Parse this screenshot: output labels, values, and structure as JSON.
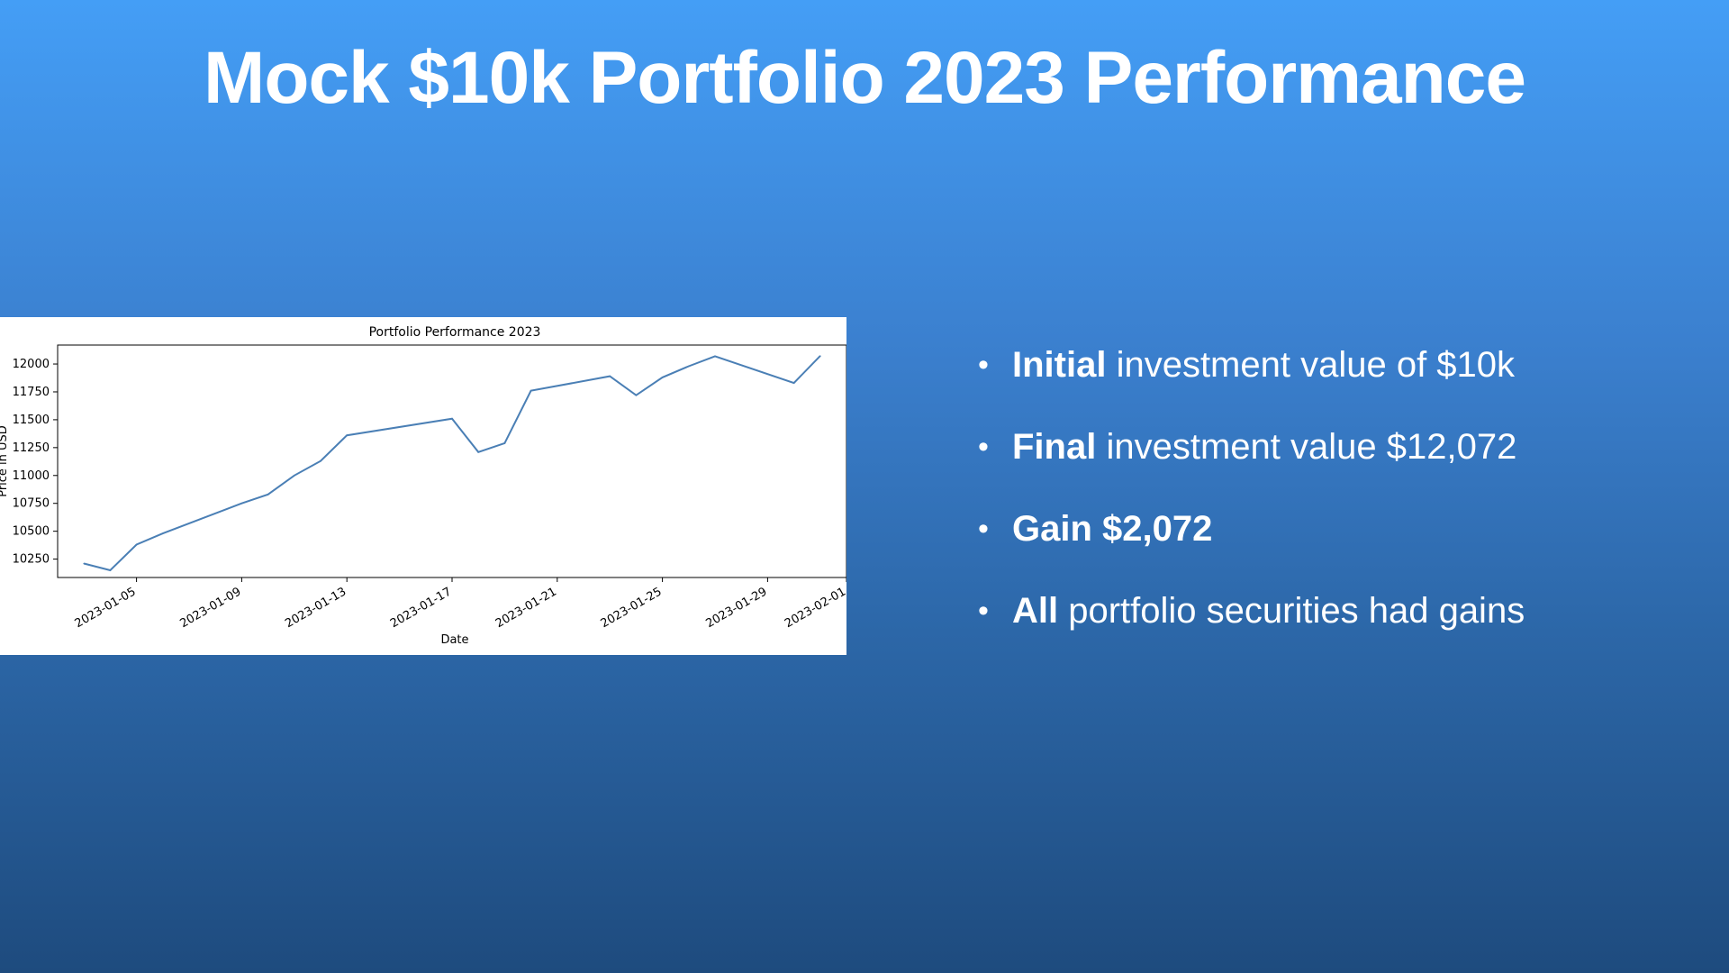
{
  "slide": {
    "title": "Mock $10k Portfolio 2023 Performance"
  },
  "bullets": [
    {
      "bold": "Initial",
      "text": " investment value of $10k"
    },
    {
      "bold": "Final",
      "text": " investment value $12,072"
    },
    {
      "bold": "Gain $2,072",
      "text": ""
    },
    {
      "bold": "All",
      "text": " portfolio securities had gains"
    }
  ],
  "colors": {
    "line": "#4a7fb5",
    "arrow": "#58aa35",
    "background_top": "#449ef6",
    "background_bottom": "#1e4b7e"
  },
  "icons": {
    "trend": "up-right-arrow-icon"
  },
  "chart_data": {
    "type": "line",
    "title": "Portfolio Performance 2023",
    "xlabel": "Date",
    "ylabel": "Price in USD",
    "x": [
      "2023-01-03",
      "2023-01-04",
      "2023-01-05",
      "2023-01-06",
      "2023-01-09",
      "2023-01-10",
      "2023-01-11",
      "2023-01-12",
      "2023-01-13",
      "2023-01-17",
      "2023-01-18",
      "2023-01-19",
      "2023-01-20",
      "2023-01-23",
      "2023-01-24",
      "2023-01-25",
      "2023-01-26",
      "2023-01-27",
      "2023-01-30",
      "2023-01-31"
    ],
    "values": [
      10210,
      10150,
      10380,
      10480,
      10750,
      10830,
      11000,
      11130,
      11360,
      11510,
      11210,
      11290,
      11760,
      11890,
      11720,
      11880,
      11980,
      12070,
      11830,
      12072
    ],
    "x_ticks": [
      "2023-01-05",
      "2023-01-09",
      "2023-01-13",
      "2023-01-17",
      "2023-01-21",
      "2023-01-25",
      "2023-01-29",
      "2023-02-01"
    ],
    "y_ticks": [
      10250,
      10500,
      10750,
      11000,
      11250,
      11500,
      11750,
      12000
    ],
    "xlim": [
      "2023-01-02",
      "2023-02-01"
    ],
    "ylim": [
      10085,
      12170
    ],
    "grid": false,
    "legend": "none"
  }
}
